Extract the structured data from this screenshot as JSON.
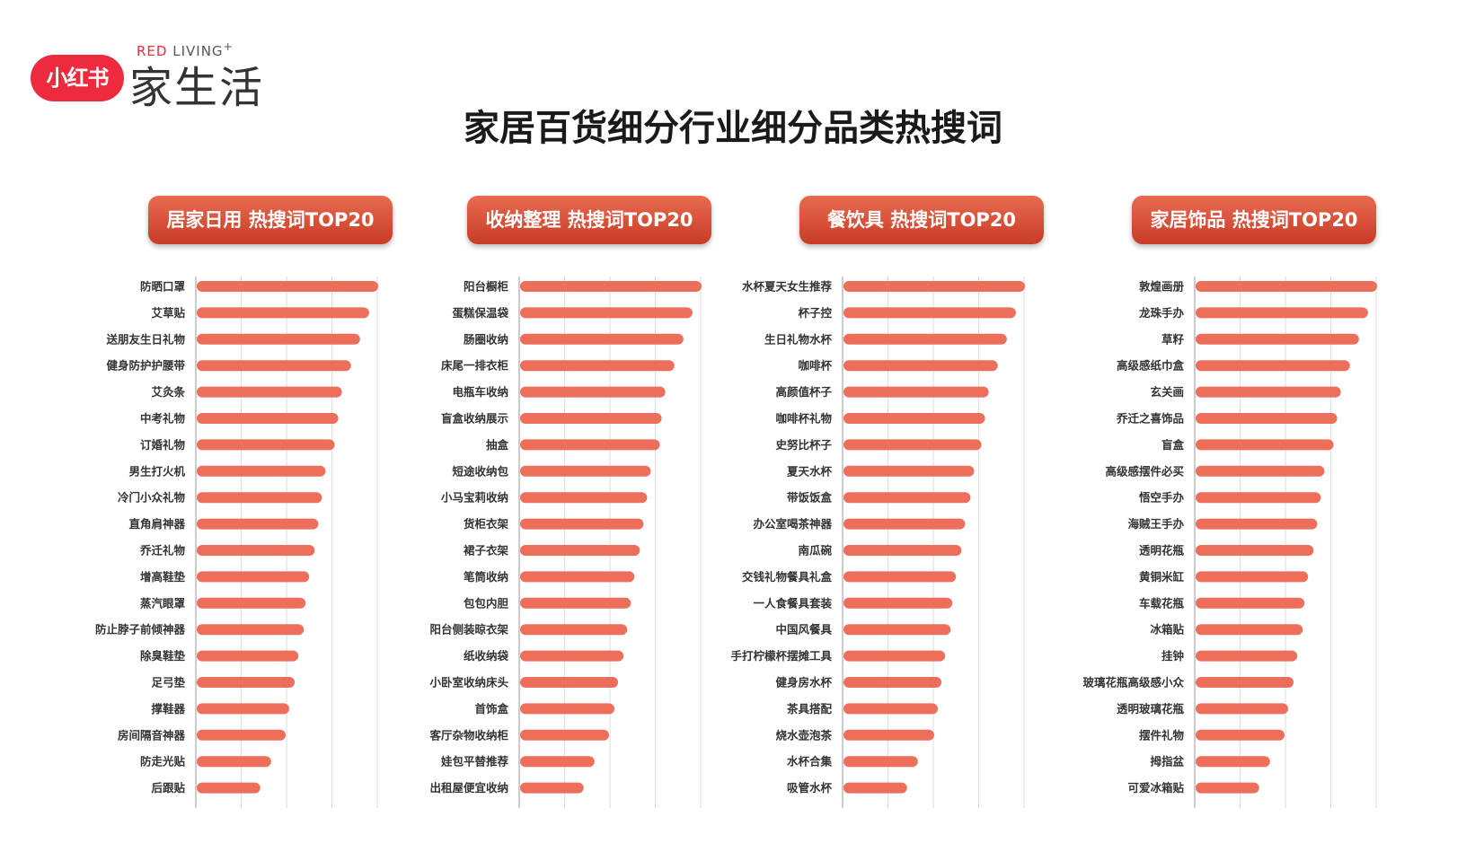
{
  "logo": {
    "badge_text": "小红书",
    "sub_red": "RED",
    "sub_living": "LIVING",
    "sub_plus": "+",
    "main_text": "家生活"
  },
  "page_title": "家居百货细分行业细分品类热搜词",
  "colors": {
    "bar": "#ec6e5b",
    "header_top": "#e86b50",
    "header_bottom": "#c93b25",
    "grid": "#dddddd"
  },
  "chart_data": [
    {
      "type": "bar",
      "orientation": "horizontal",
      "title": "居家日用 热搜词TOP20",
      "categories": [
        "防晒口罩",
        "艾草贴",
        "送朋友生日礼物",
        "健身防护护腰带",
        "艾灸条",
        "中考礼物",
        "订婚礼物",
        "男生打火机",
        "冷门小众礼物",
        "直角肩神器",
        "乔迁礼物",
        "增高鞋垫",
        "蒸汽眼罩",
        "防止脖子前倾神器",
        "除臭鞋垫",
        "足弓垫",
        "撑鞋器",
        "房间隔音神器",
        "防走光贴",
        "后跟贴"
      ],
      "values": [
        100,
        95,
        90,
        85,
        80,
        78,
        76,
        71,
        69,
        67,
        65,
        62,
        60,
        59,
        56,
        54,
        51,
        49,
        41,
        35
      ],
      "xlim": [
        0,
        100
      ],
      "grid": true
    },
    {
      "type": "bar",
      "orientation": "horizontal",
      "title": "收纳整理 热搜词TOP20",
      "categories": [
        "阳台橱柜",
        "蛋糕保温袋",
        "肠圈收纳",
        "床尾一排衣柜",
        "电瓶车收纳",
        "盲盒收纳展示",
        "抽盒",
        "短途收纳包",
        "小马宝莉收纳",
        "货柜衣架",
        "裙子衣架",
        "笔筒收纳",
        "包包内胆",
        "阳台侧装晾衣架",
        "纸收纳袋",
        "小卧室收纳床头",
        "首饰盒",
        "客厅杂物收纳柜",
        "娃包平替推荐",
        "出租屋便宜收纳"
      ],
      "values": [
        100,
        95,
        90,
        85,
        80,
        78,
        77,
        72,
        70,
        68,
        66,
        63,
        61,
        59,
        57,
        54,
        52,
        49,
        41,
        35
      ],
      "xlim": [
        0,
        100
      ],
      "grid": true
    },
    {
      "type": "bar",
      "orientation": "horizontal",
      "title": "餐饮具 热搜词TOP20",
      "categories": [
        "水杯夏天女生推荐",
        "杯子控",
        "生日礼物水杯",
        "咖啡杯",
        "高颜值杯子",
        "咖啡杯礼物",
        "史努比杯子",
        "夏天水杯",
        "带饭饭盒",
        "办公室喝茶神器",
        "南瓜碗",
        "交钱礼物餐具礼盒",
        "一人食餐具套装",
        "中国风餐具",
        "手打柠檬杯摆摊工具",
        "健身房水杯",
        "茶具搭配",
        "烧水壶泡茶",
        "水杯合集",
        "吸管水杯"
      ],
      "values": [
        100,
        95,
        90,
        85,
        80,
        78,
        76,
        72,
        70,
        67,
        65,
        62,
        60,
        59,
        56,
        54,
        52,
        50,
        41,
        35
      ],
      "xlim": [
        0,
        100
      ],
      "grid": true
    },
    {
      "type": "bar",
      "orientation": "horizontal",
      "title": "家居饰品 热搜词TOP20",
      "categories": [
        "敦煌画册",
        "龙珠手办",
        "草籽",
        "高级感纸巾盒",
        "玄关画",
        "乔迁之喜饰品",
        "盲盒",
        "高级感摆件必买",
        "悟空手办",
        "海贼王手办",
        "透明花瓶",
        "黄铜米缸",
        "车载花瓶",
        "冰箱贴",
        "挂钟",
        "玻璃花瓶高级感小众",
        "透明玻璃花瓶",
        "摆件礼物",
        "拇指盆",
        "可爱冰箱贴"
      ],
      "values": [
        100,
        95,
        90,
        85,
        80,
        78,
        76,
        71,
        69,
        67,
        65,
        62,
        60,
        59,
        56,
        54,
        51,
        49,
        41,
        35
      ],
      "xlim": [
        0,
        100
      ],
      "grid": true
    }
  ]
}
